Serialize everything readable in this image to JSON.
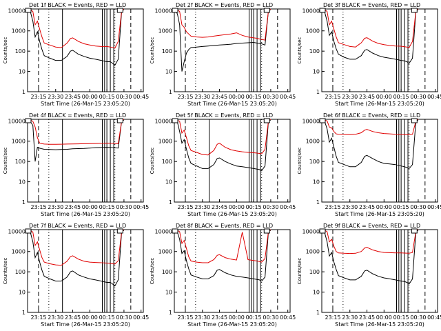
{
  "figure": {
    "xlabel": "Start Time (26-Mar-15 23:05:20)",
    "ylabel": "Counts/sec",
    "x_ticks": [
      "23:15",
      "23:30",
      "23:45",
      "00:00",
      "00:15",
      "00:30",
      "00:45"
    ],
    "y_ticks": [
      "1",
      "10",
      "100",
      "1000",
      "10000"
    ],
    "colors": {
      "events": "#000000",
      "lld": "#e00000",
      "frame": "#000000",
      "background": "#ffffff"
    }
  },
  "chart_data": [
    {
      "type": "line",
      "title": "Det 1f BLACK = Events, RED = LLD",
      "xlim": [
        "23:05:20",
        "00:47:00"
      ],
      "ylim": [
        1,
        12000
      ],
      "yscale": "log",
      "grid": false,
      "legend": "none",
      "x": [
        "23:06",
        "23:08",
        "23:10",
        "23:12",
        "23:14",
        "23:16",
        "23:18",
        "23:20",
        "23:25",
        "23:30",
        "23:35",
        "23:40",
        "23:43",
        "23:45",
        "23:50",
        "23:55",
        "00:00",
        "00:05",
        "00:10",
        "00:15",
        "00:18",
        "00:20",
        "00:22",
        "00:25",
        "00:28",
        "00:30"
      ],
      "series": [
        {
          "color": "#000000",
          "values": [
            12000,
            8000,
            3000,
            500,
            900,
            300,
            120,
            60,
            45,
            35,
            35,
            55,
            100,
            110,
            70,
            55,
            45,
            40,
            35,
            30,
            30,
            25,
            20,
            40,
            10000,
            11000
          ]
        },
        {
          "color": "#e00000",
          "values": [
            12000,
            11000,
            9000,
            2000,
            3000,
            1200,
            500,
            250,
            200,
            160,
            150,
            250,
            420,
            450,
            300,
            230,
            200,
            180,
            170,
            170,
            160,
            150,
            140,
            300,
            10000,
            12000
          ]
        }
      ],
      "vlines_solid": [
        "23:36",
        "00:11",
        "00:13",
        "00:15",
        "00:18",
        "00:21"
      ],
      "vlines_dashed": [
        "23:15",
        "00:36"
      ],
      "vlines_dotted": [
        "23:24",
        "00:22"
      ],
      "boxes": [
        "23:05:20",
        "00:26"
      ]
    },
    {
      "type": "line",
      "title": "Det 2f BLACK = Events, RED = LLD",
      "xlim": [
        "23:05:20",
        "00:47:00"
      ],
      "ylim": [
        1,
        12000
      ],
      "yscale": "log",
      "grid": false,
      "legend": "none",
      "x": [
        "23:06",
        "23:08",
        "23:10",
        "23:12",
        "23:14",
        "23:16",
        "23:18",
        "23:20",
        "23:25",
        "23:30",
        "23:35",
        "23:40",
        "23:45",
        "23:50",
        "23:55",
        "00:00",
        "00:05",
        "00:10",
        "00:15",
        "00:18",
        "00:20",
        "00:22",
        "00:25",
        "00:28",
        "00:30"
      ],
      "series": [
        {
          "color": "#000000",
          "values": [
            10000,
            7000,
            2000,
            10,
            30,
            80,
            120,
            150,
            160,
            170,
            180,
            190,
            200,
            210,
            220,
            240,
            250,
            260,
            270,
            250,
            240,
            230,
            200,
            10000,
            11000
          ]
        },
        {
          "color": "#e00000",
          "values": [
            12000,
            11000,
            9000,
            2000,
            1500,
            900,
            700,
            550,
            500,
            480,
            500,
            550,
            600,
            650,
            700,
            800,
            600,
            500,
            450,
            430,
            400,
            380,
            350,
            10000,
            12000
          ]
        }
      ],
      "vlines_solid": [
        "00:11",
        "00:13",
        "00:15",
        "00:18",
        "00:21"
      ],
      "vlines_dashed": [
        "23:15",
        "00:36"
      ],
      "vlines_dotted": [
        "23:24",
        "00:22"
      ],
      "boxes": [
        "23:05:20",
        "00:26"
      ]
    },
    {
      "type": "line",
      "title": "Det 3f BLACK = Events, RED = LLD",
      "xlim": [
        "23:05:20",
        "00:47:00"
      ],
      "ylim": [
        1,
        12000
      ],
      "yscale": "log",
      "grid": false,
      "legend": "none",
      "x": [
        "23:06",
        "23:08",
        "23:10",
        "23:12",
        "23:14",
        "23:16",
        "23:18",
        "23:20",
        "23:25",
        "23:30",
        "23:35",
        "23:40",
        "23:43",
        "23:45",
        "23:50",
        "23:55",
        "00:00",
        "00:05",
        "00:10",
        "00:15",
        "00:18",
        "00:20",
        "00:22",
        "00:25",
        "00:28",
        "00:30"
      ],
      "series": [
        {
          "color": "#000000",
          "values": [
            12000,
            8000,
            3000,
            600,
            900,
            300,
            130,
            70,
            50,
            40,
            40,
            60,
            110,
            120,
            80,
            60,
            50,
            45,
            40,
            35,
            33,
            30,
            25,
            45,
            10000,
            11000
          ]
        },
        {
          "color": "#e00000",
          "values": [
            12000,
            11000,
            9000,
            2000,
            3000,
            1200,
            500,
            260,
            210,
            170,
            160,
            260,
            430,
            460,
            310,
            240,
            210,
            190,
            180,
            175,
            165,
            160,
            150,
            300,
            10000,
            12000
          ]
        }
      ],
      "vlines_solid": [
        "00:11",
        "00:13",
        "00:15",
        "00:18",
        "00:21"
      ],
      "vlines_dashed": [
        "23:15",
        "00:36"
      ],
      "vlines_dotted": [
        "23:24",
        "00:22"
      ],
      "boxes": [
        "23:05:20",
        "00:26"
      ]
    },
    {
      "type": "line",
      "title": "Det 4f BLACK = Events, RED = LLD",
      "xlim": [
        "23:05:20",
        "00:47:00"
      ],
      "ylim": [
        1,
        12000
      ],
      "yscale": "log",
      "grid": false,
      "legend": "none",
      "x": [
        "23:06",
        "23:08",
        "23:10",
        "23:12",
        "23:14",
        "23:16",
        "23:18",
        "23:20",
        "23:25",
        "23:30",
        "23:35",
        "23:40",
        "23:45",
        "23:50",
        "23:55",
        "00:00",
        "00:05",
        "00:10",
        "00:15",
        "00:18",
        "00:20",
        "00:22",
        "00:25",
        "00:28",
        "00:30"
      ],
      "series": [
        {
          "color": "#000000",
          "values": [
            11000,
            9000,
            6000,
            100,
            500,
            450,
            420,
            400,
            390,
            380,
            390,
            400,
            420,
            430,
            440,
            460,
            480,
            490,
            500,
            490,
            480,
            470,
            460,
            10000,
            11000
          ]
        },
        {
          "color": "#e00000",
          "values": [
            12000,
            11000,
            9500,
            5000,
            1500,
            800,
            750,
            720,
            700,
            700,
            710,
            720,
            730,
            740,
            750,
            760,
            770,
            780,
            800,
            790,
            780,
            770,
            760,
            10000,
            12000
          ]
        }
      ],
      "vlines_solid": [
        "23:36",
        "00:11",
        "00:13",
        "00:15",
        "00:18",
        "00:21"
      ],
      "vlines_dashed": [
        "23:15",
        "00:36"
      ],
      "vlines_dotted": [
        "23:24",
        "00:22"
      ],
      "boxes": [
        "23:05:20",
        "00:26"
      ]
    },
    {
      "type": "line",
      "title": "Det 5f BLACK = Events, RED = LLD",
      "xlim": [
        "23:05:20",
        "00:47:00"
      ],
      "ylim": [
        1,
        12000
      ],
      "yscale": "log",
      "grid": false,
      "legend": "none",
      "x": [
        "23:06",
        "23:08",
        "23:10",
        "23:12",
        "23:14",
        "23:16",
        "23:18",
        "23:20",
        "23:25",
        "23:30",
        "23:35",
        "23:40",
        "23:43",
        "23:45",
        "23:50",
        "23:55",
        "00:00",
        "00:05",
        "00:10",
        "00:15",
        "00:18",
        "00:20",
        "00:22",
        "00:25",
        "00:28",
        "00:30"
      ],
      "series": [
        {
          "color": "#000000",
          "values": [
            12000,
            9000,
            3000,
            800,
            1200,
            400,
            150,
            80,
            60,
            45,
            45,
            70,
            140,
            150,
            100,
            75,
            60,
            55,
            50,
            45,
            42,
            40,
            35,
            60,
            10000,
            11000
          ]
        },
        {
          "color": "#e00000",
          "values": [
            12000,
            11000,
            9500,
            2500,
            3500,
            1500,
            600,
            350,
            280,
            220,
            210,
            350,
            700,
            800,
            500,
            380,
            330,
            300,
            280,
            270,
            260,
            250,
            240,
            400,
            10000,
            12000
          ]
        }
      ],
      "vlines_solid": [
        "23:36",
        "00:11",
        "00:13",
        "00:15",
        "00:18",
        "00:21"
      ],
      "vlines_dashed": [
        "23:15",
        "00:36"
      ],
      "vlines_dotted": [
        "23:24",
        "00:22"
      ],
      "boxes": [
        "23:05:20",
        "00:26"
      ]
    },
    {
      "type": "line",
      "title": "Det 6f BLACK = Events, RED = LLD",
      "xlim": [
        "23:05:20",
        "00:47:00"
      ],
      "ylim": [
        1,
        12000
      ],
      "yscale": "log",
      "grid": false,
      "legend": "none",
      "x": [
        "23:06",
        "23:08",
        "23:10",
        "23:12",
        "23:14",
        "23:16",
        "23:18",
        "23:20",
        "23:25",
        "23:30",
        "23:35",
        "23:40",
        "23:43",
        "23:45",
        "23:50",
        "23:55",
        "00:00",
        "00:05",
        "00:10",
        "00:15",
        "00:18",
        "00:20",
        "00:22",
        "00:25",
        "00:28",
        "00:30"
      ],
      "series": [
        {
          "color": "#000000",
          "values": [
            12000,
            9000,
            4000,
            900,
            1400,
            500,
            180,
            90,
            70,
            55,
            55,
            90,
            180,
            200,
            140,
            100,
            80,
            75,
            70,
            60,
            55,
            50,
            45,
            70,
            10000,
            11000
          ]
        },
        {
          "color": "#e00000",
          "values": [
            12000,
            11000,
            10000,
            5000,
            4500,
            3000,
            2300,
            2200,
            2150,
            2100,
            2200,
            2600,
            3500,
            3800,
            3000,
            2600,
            2400,
            2300,
            2200,
            2150,
            2100,
            2100,
            2050,
            2200,
            10000,
            12000
          ]
        }
      ],
      "vlines_solid": [
        "00:11",
        "00:13",
        "00:15",
        "00:18",
        "00:21"
      ],
      "vlines_dashed": [
        "23:15",
        "00:36"
      ],
      "vlines_dotted": [
        "23:24",
        "00:22"
      ],
      "boxes": [
        "23:05:20",
        "00:26"
      ]
    },
    {
      "type": "line",
      "title": "Det 7f BLACK = Events, RED = LLD",
      "xlim": [
        "23:05:20",
        "00:47:00"
      ],
      "ylim": [
        1,
        12000
      ],
      "yscale": "log",
      "grid": false,
      "legend": "none",
      "x": [
        "23:06",
        "23:08",
        "23:10",
        "23:12",
        "23:14",
        "23:16",
        "23:18",
        "23:20",
        "23:25",
        "23:30",
        "23:35",
        "23:40",
        "23:43",
        "23:45",
        "23:50",
        "23:55",
        "00:00",
        "00:05",
        "00:10",
        "00:15",
        "00:18",
        "00:20",
        "00:22",
        "00:25",
        "00:28",
        "00:30"
      ],
      "series": [
        {
          "color": "#000000",
          "values": [
            12000,
            8000,
            3000,
            500,
            900,
            300,
            120,
            60,
            45,
            35,
            35,
            55,
            100,
            110,
            70,
            55,
            45,
            40,
            35,
            30,
            30,
            25,
            20,
            40,
            10000,
            11000
          ]
        },
        {
          "color": "#e00000",
          "values": [
            12000,
            11000,
            9000,
            2000,
            3000,
            1200,
            500,
            300,
            250,
            220,
            210,
            330,
            560,
            620,
            420,
            330,
            300,
            290,
            280,
            270,
            260,
            250,
            240,
            350,
            10000,
            12000
          ]
        }
      ],
      "vlines_solid": [
        "23:36",
        "00:11",
        "00:13",
        "00:15",
        "00:18",
        "00:21"
      ],
      "vlines_dashed": [
        "23:15",
        "00:36"
      ],
      "vlines_dotted": [
        "23:24",
        "00:22"
      ],
      "boxes": [
        "23:05:20",
        "00:26"
      ]
    },
    {
      "type": "line",
      "title": "Det 8f BLACK = Events, RED = LLD",
      "xlim": [
        "23:05:20",
        "00:47:00"
      ],
      "ylim": [
        1,
        12000
      ],
      "yscale": "log",
      "grid": false,
      "legend": "none",
      "x": [
        "23:06",
        "23:08",
        "23:10",
        "23:12",
        "23:14",
        "23:16",
        "23:18",
        "23:20",
        "23:25",
        "23:30",
        "23:35",
        "23:40",
        "23:43",
        "23:45",
        "23:50",
        "23:55",
        "00:00",
        "00:05",
        "00:10",
        "00:15",
        "00:18",
        "00:20",
        "00:22",
        "00:25",
        "00:28",
        "00:30"
      ],
      "series": [
        {
          "color": "#000000",
          "values": [
            12000,
            9000,
            4000,
            800,
            1100,
            350,
            140,
            70,
            55,
            45,
            45,
            65,
            120,
            130,
            90,
            70,
            60,
            55,
            50,
            45,
            42,
            40,
            35,
            55,
            10000,
            11000
          ]
        },
        {
          "color": "#e00000",
          "values": [
            12000,
            11000,
            9500,
            2500,
            3500,
            1400,
            550,
            340,
            300,
            280,
            280,
            400,
            650,
            700,
            500,
            420,
            380,
            9000,
            400,
            360,
            340,
            320,
            300,
            450,
            10000,
            12000
          ]
        }
      ],
      "vlines_solid": [
        "00:11",
        "00:13",
        "00:15",
        "00:18",
        "00:21"
      ],
      "vlines_dashed": [
        "23:15",
        "00:36"
      ],
      "vlines_dotted": [
        "23:24",
        "00:22"
      ],
      "boxes": [
        "23:05:20",
        "00:26"
      ]
    },
    {
      "type": "line",
      "title": "Det 9f BLACK = Events, RED = LLD",
      "xlim": [
        "23:05:20",
        "00:47:00"
      ],
      "ylim": [
        1,
        12000
      ],
      "yscale": "log",
      "grid": false,
      "legend": "none",
      "x": [
        "23:06",
        "23:08",
        "23:10",
        "23:12",
        "23:14",
        "23:16",
        "23:18",
        "23:20",
        "23:25",
        "23:30",
        "23:35",
        "23:40",
        "23:43",
        "23:45",
        "23:50",
        "23:55",
        "00:00",
        "00:05",
        "00:10",
        "00:15",
        "00:18",
        "00:20",
        "00:22",
        "00:25",
        "00:28",
        "00:30"
      ],
      "series": [
        {
          "color": "#000000",
          "values": [
            12000,
            8000,
            3000,
            600,
            900,
            300,
            130,
            65,
            50,
            40,
            40,
            60,
            110,
            120,
            80,
            60,
            50,
            45,
            40,
            35,
            33,
            30,
            25,
            45,
            10000,
            11000
          ]
        },
        {
          "color": "#e00000",
          "values": [
            12000,
            11000,
            9500,
            3000,
            4000,
            1800,
            1000,
            850,
            820,
            800,
            820,
            1000,
            1500,
            1600,
            1200,
            1000,
            900,
            880,
            860,
            850,
            840,
            830,
            820,
            900,
            10000,
            12000
          ]
        }
      ],
      "vlines_solid": [
        "00:11",
        "00:13",
        "00:15",
        "00:18",
        "00:21"
      ],
      "vlines_dashed": [
        "23:15",
        "00:36"
      ],
      "vlines_dotted": [
        "23:24",
        "00:22"
      ],
      "boxes": [
        "23:05:20",
        "00:26"
      ]
    }
  ]
}
